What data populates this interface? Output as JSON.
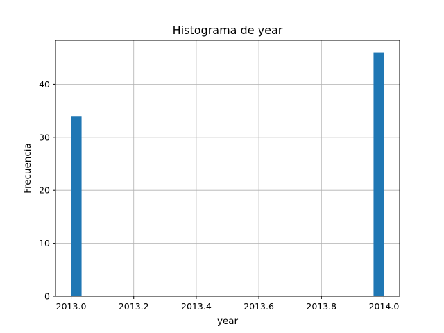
{
  "chart_data": {
    "type": "bar",
    "title": "Histograma de year",
    "xlabel": "year",
    "ylabel": "Frecuencia",
    "bars": [
      {
        "x_start": 2013.0,
        "x_end": 2013.0333,
        "value": 34
      },
      {
        "x_start": 2013.9667,
        "x_end": 2014.0,
        "value": 46
      }
    ],
    "xlim": [
      2012.95,
      2014.05
    ],
    "ylim": [
      0,
      48.3
    ],
    "xticks": [
      2013.0,
      2013.2,
      2013.4,
      2013.6,
      2013.8,
      2014.0
    ],
    "xtick_labels": [
      "2013.0",
      "2013.2",
      "2013.4",
      "2013.6",
      "2013.8",
      "2014.0"
    ],
    "yticks": [
      0,
      10,
      20,
      30,
      40
    ],
    "ytick_labels": [
      "0",
      "10",
      "20",
      "30",
      "40"
    ],
    "grid": true,
    "bar_color": "#1f77b4",
    "grid_color": "#b0b0b0"
  }
}
